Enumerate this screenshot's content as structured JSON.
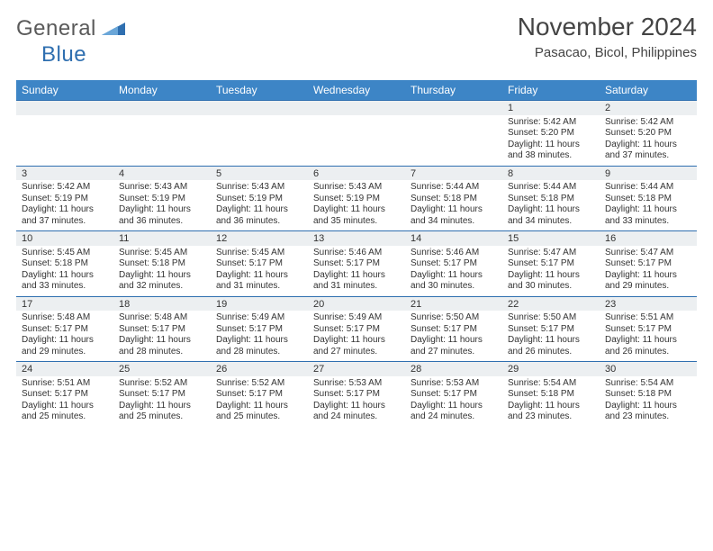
{
  "logo": {
    "word1": "General",
    "word2": "Blue"
  },
  "title": "November 2024",
  "location": "Pasacao, Bicol, Philippines",
  "colors": {
    "header_bg": "#3d85c6",
    "header_text": "#ffffff",
    "daynum_bg": "#eceff1",
    "row_border": "#2f6fb0",
    "body_text": "#333333",
    "logo_gray": "#5a5a5a",
    "logo_blue": "#2f6fb0"
  },
  "typography": {
    "title_fontsize": 28,
    "location_fontsize": 15,
    "dayheader_fontsize": 12,
    "daynum_fontsize": 11,
    "cell_fontsize": 10
  },
  "day_names": [
    "Sunday",
    "Monday",
    "Tuesday",
    "Wednesday",
    "Thursday",
    "Friday",
    "Saturday"
  ],
  "weeks": [
    [
      null,
      null,
      null,
      null,
      null,
      {
        "n": "1",
        "sunrise": "5:42 AM",
        "sunset": "5:20 PM",
        "daylight": "11 hours and 38 minutes."
      },
      {
        "n": "2",
        "sunrise": "5:42 AM",
        "sunset": "5:20 PM",
        "daylight": "11 hours and 37 minutes."
      }
    ],
    [
      {
        "n": "3",
        "sunrise": "5:42 AM",
        "sunset": "5:19 PM",
        "daylight": "11 hours and 37 minutes."
      },
      {
        "n": "4",
        "sunrise": "5:43 AM",
        "sunset": "5:19 PM",
        "daylight": "11 hours and 36 minutes."
      },
      {
        "n": "5",
        "sunrise": "5:43 AM",
        "sunset": "5:19 PM",
        "daylight": "11 hours and 36 minutes."
      },
      {
        "n": "6",
        "sunrise": "5:43 AM",
        "sunset": "5:19 PM",
        "daylight": "11 hours and 35 minutes."
      },
      {
        "n": "7",
        "sunrise": "5:44 AM",
        "sunset": "5:18 PM",
        "daylight": "11 hours and 34 minutes."
      },
      {
        "n": "8",
        "sunrise": "5:44 AM",
        "sunset": "5:18 PM",
        "daylight": "11 hours and 34 minutes."
      },
      {
        "n": "9",
        "sunrise": "5:44 AM",
        "sunset": "5:18 PM",
        "daylight": "11 hours and 33 minutes."
      }
    ],
    [
      {
        "n": "10",
        "sunrise": "5:45 AM",
        "sunset": "5:18 PM",
        "daylight": "11 hours and 33 minutes."
      },
      {
        "n": "11",
        "sunrise": "5:45 AM",
        "sunset": "5:18 PM",
        "daylight": "11 hours and 32 minutes."
      },
      {
        "n": "12",
        "sunrise": "5:45 AM",
        "sunset": "5:17 PM",
        "daylight": "11 hours and 31 minutes."
      },
      {
        "n": "13",
        "sunrise": "5:46 AM",
        "sunset": "5:17 PM",
        "daylight": "11 hours and 31 minutes."
      },
      {
        "n": "14",
        "sunrise": "5:46 AM",
        "sunset": "5:17 PM",
        "daylight": "11 hours and 30 minutes."
      },
      {
        "n": "15",
        "sunrise": "5:47 AM",
        "sunset": "5:17 PM",
        "daylight": "11 hours and 30 minutes."
      },
      {
        "n": "16",
        "sunrise": "5:47 AM",
        "sunset": "5:17 PM",
        "daylight": "11 hours and 29 minutes."
      }
    ],
    [
      {
        "n": "17",
        "sunrise": "5:48 AM",
        "sunset": "5:17 PM",
        "daylight": "11 hours and 29 minutes."
      },
      {
        "n": "18",
        "sunrise": "5:48 AM",
        "sunset": "5:17 PM",
        "daylight": "11 hours and 28 minutes."
      },
      {
        "n": "19",
        "sunrise": "5:49 AM",
        "sunset": "5:17 PM",
        "daylight": "11 hours and 28 minutes."
      },
      {
        "n": "20",
        "sunrise": "5:49 AM",
        "sunset": "5:17 PM",
        "daylight": "11 hours and 27 minutes."
      },
      {
        "n": "21",
        "sunrise": "5:50 AM",
        "sunset": "5:17 PM",
        "daylight": "11 hours and 27 minutes."
      },
      {
        "n": "22",
        "sunrise": "5:50 AM",
        "sunset": "5:17 PM",
        "daylight": "11 hours and 26 minutes."
      },
      {
        "n": "23",
        "sunrise": "5:51 AM",
        "sunset": "5:17 PM",
        "daylight": "11 hours and 26 minutes."
      }
    ],
    [
      {
        "n": "24",
        "sunrise": "5:51 AM",
        "sunset": "5:17 PM",
        "daylight": "11 hours and 25 minutes."
      },
      {
        "n": "25",
        "sunrise": "5:52 AM",
        "sunset": "5:17 PM",
        "daylight": "11 hours and 25 minutes."
      },
      {
        "n": "26",
        "sunrise": "5:52 AM",
        "sunset": "5:17 PM",
        "daylight": "11 hours and 25 minutes."
      },
      {
        "n": "27",
        "sunrise": "5:53 AM",
        "sunset": "5:17 PM",
        "daylight": "11 hours and 24 minutes."
      },
      {
        "n": "28",
        "sunrise": "5:53 AM",
        "sunset": "5:17 PM",
        "daylight": "11 hours and 24 minutes."
      },
      {
        "n": "29",
        "sunrise": "5:54 AM",
        "sunset": "5:18 PM",
        "daylight": "11 hours and 23 minutes."
      },
      {
        "n": "30",
        "sunrise": "5:54 AM",
        "sunset": "5:18 PM",
        "daylight": "11 hours and 23 minutes."
      }
    ]
  ],
  "labels": {
    "sunrise": "Sunrise: ",
    "sunset": "Sunset: ",
    "daylight": "Daylight: "
  }
}
